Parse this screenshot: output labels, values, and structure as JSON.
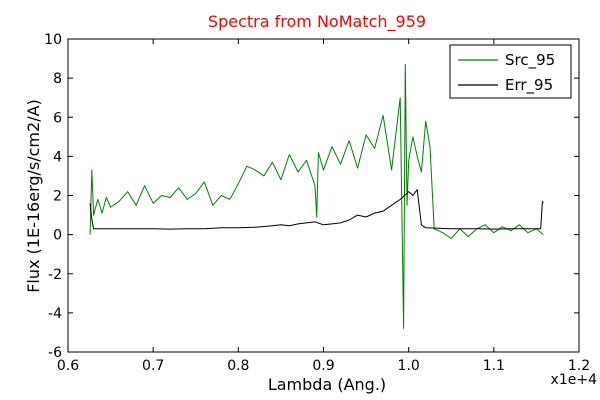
{
  "chart_data": {
    "type": "line",
    "title": "Spectra from NoMatch_959",
    "title_color": "#ff0000",
    "xlabel": "Lambda (Ang.)",
    "ylabel": "Flux (1E-16erg/s/cm2/A)",
    "x_multiplier_label": "x1e+4",
    "xlim": [
      0.6,
      1.2
    ],
    "ylim": [
      -6,
      10
    ],
    "x_ticks": [
      0.6,
      0.7,
      0.8,
      0.9,
      1.0,
      1.1,
      1.2
    ],
    "x_tick_labels": [
      "0.6",
      "0.7",
      "0.8",
      "0.9",
      "1.0",
      "1.1",
      "1.2"
    ],
    "y_ticks": [
      -6,
      -4,
      -2,
      0,
      2,
      4,
      6,
      8,
      10
    ],
    "y_tick_labels": [
      "-6",
      "-4",
      "-2",
      "0",
      "2",
      "4",
      "6",
      "8",
      "10"
    ],
    "grid": false,
    "legend_position": "top-right",
    "series": [
      {
        "name": "Src_95",
        "color": "#008000",
        "x": [
          0.626,
          0.628,
          0.63,
          0.635,
          0.64,
          0.645,
          0.65,
          0.66,
          0.67,
          0.68,
          0.69,
          0.7,
          0.71,
          0.72,
          0.73,
          0.74,
          0.75,
          0.76,
          0.77,
          0.78,
          0.79,
          0.8,
          0.81,
          0.82,
          0.83,
          0.84,
          0.85,
          0.86,
          0.87,
          0.88,
          0.89,
          0.892,
          0.894,
          0.9,
          0.91,
          0.92,
          0.93,
          0.94,
          0.95,
          0.96,
          0.97,
          0.98,
          0.99,
          0.994,
          0.996,
          0.998,
          1.0,
          1.005,
          1.01,
          1.015,
          1.02,
          1.025,
          1.03,
          1.04,
          1.05,
          1.06,
          1.07,
          1.08,
          1.09,
          1.1,
          1.11,
          1.12,
          1.13,
          1.14,
          1.15,
          1.158
        ],
        "y": [
          0.0,
          3.3,
          1.0,
          1.8,
          1.1,
          1.9,
          1.4,
          1.7,
          2.2,
          1.5,
          2.5,
          1.6,
          2.0,
          1.9,
          2.4,
          1.8,
          2.1,
          2.7,
          1.5,
          2.0,
          1.8,
          2.6,
          3.5,
          3.3,
          3.0,
          3.7,
          2.8,
          4.1,
          3.2,
          3.8,
          2.5,
          0.9,
          4.2,
          3.3,
          4.5,
          3.6,
          4.8,
          3.4,
          5.1,
          4.4,
          6.1,
          3.3,
          7.0,
          -4.8,
          8.7,
          1.5,
          3.8,
          5.0,
          4.0,
          3.2,
          5.8,
          4.5,
          0.3,
          0.1,
          -0.2,
          0.3,
          -0.1,
          0.3,
          0.5,
          0.1,
          0.4,
          0.2,
          0.5,
          0.1,
          0.3,
          0.0
        ]
      },
      {
        "name": "Err_95",
        "color": "#000000",
        "x": [
          0.626,
          0.628,
          0.63,
          0.64,
          0.66,
          0.68,
          0.7,
          0.72,
          0.74,
          0.76,
          0.78,
          0.8,
          0.82,
          0.84,
          0.85,
          0.86,
          0.87,
          0.88,
          0.89,
          0.9,
          0.91,
          0.92,
          0.93,
          0.94,
          0.95,
          0.96,
          0.97,
          0.98,
          0.99,
          1.0,
          1.005,
          1.01,
          1.015,
          1.02,
          1.05,
          1.08,
          1.1,
          1.12,
          1.14,
          1.155,
          1.157,
          1.158
        ],
        "y": [
          1.6,
          0.8,
          0.3,
          0.3,
          0.3,
          0.3,
          0.3,
          0.28,
          0.3,
          0.3,
          0.35,
          0.35,
          0.38,
          0.45,
          0.5,
          0.45,
          0.55,
          0.6,
          0.65,
          0.5,
          0.55,
          0.6,
          0.75,
          1.0,
          0.9,
          1.1,
          1.2,
          1.5,
          1.8,
          2.2,
          2.0,
          2.3,
          0.5,
          0.35,
          0.3,
          0.3,
          0.28,
          0.3,
          0.3,
          0.3,
          1.7,
          1.6
        ]
      }
    ]
  }
}
